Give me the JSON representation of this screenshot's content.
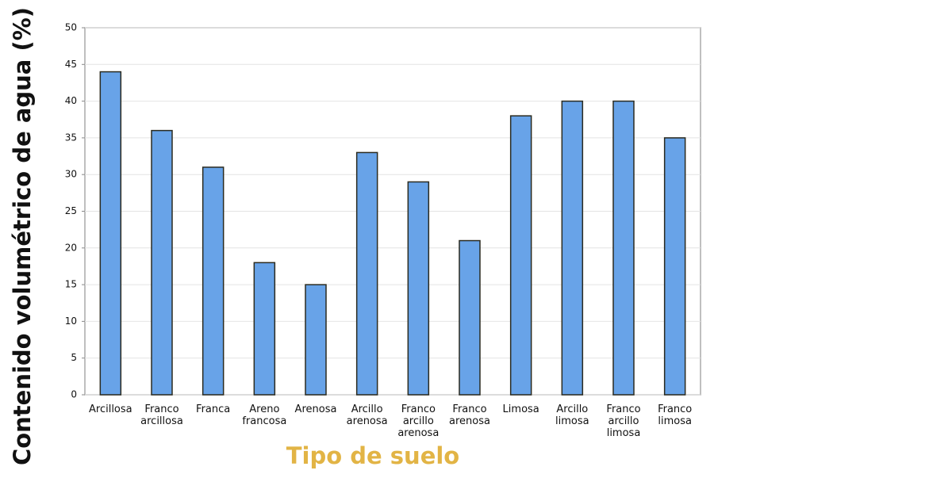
{
  "chart_data": {
    "type": "bar",
    "y_label": "Contenido volumétrico de agua (%)",
    "x_label": "Tipo de suelo",
    "categories": [
      "Arcillosa",
      "Franco arcillosa",
      "Franca",
      "Areno francosa",
      "Arenosa",
      "Arcillo arenosa",
      "Franco arcillo arenosa",
      "Franco arenosa",
      "Limosa",
      "Arcillo limosa",
      "Franco arcillo limosa",
      "Franco limosa"
    ],
    "values": [
      44,
      36,
      31,
      18,
      15,
      33,
      29,
      21,
      38,
      40,
      40,
      35
    ],
    "color": "#68a3e8",
    "ylim": [
      0,
      50
    ],
    "yticks": [
      0,
      5,
      10,
      15,
      20,
      25,
      30,
      35,
      40,
      45,
      50
    ],
    "grid": true
  }
}
